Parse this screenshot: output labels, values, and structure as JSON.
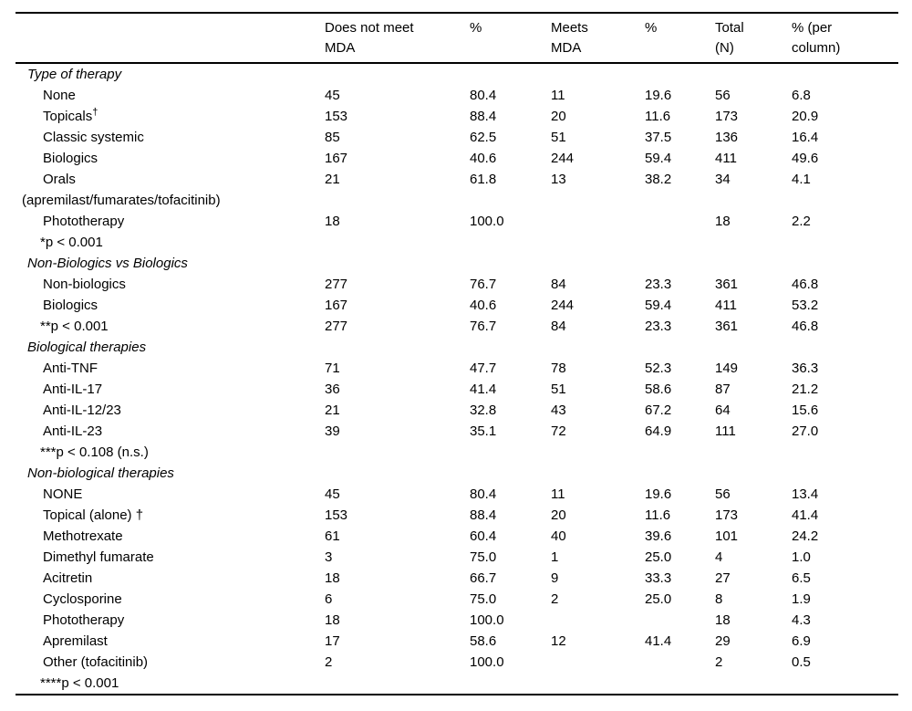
{
  "colors": {
    "background": "#ffffff",
    "text": "#000000",
    "rule": "#000000"
  },
  "table": {
    "headers": [
      "",
      "Does not meet\nMDA",
      "%",
      "Meets\nMDA",
      "%",
      "Total\n(N)",
      "% (per\ncolumn)"
    ],
    "rows": [
      {
        "type": "section",
        "label": "Type of therapy"
      },
      {
        "type": "item",
        "label": "None",
        "values": [
          "45",
          "80.4",
          "11",
          "19.6",
          "56",
          "6.8"
        ]
      },
      {
        "type": "item",
        "label": "Topicals",
        "label_sup": "†",
        "values": [
          "153",
          "88.4",
          "20",
          "11.6",
          "173",
          "20.9"
        ]
      },
      {
        "type": "item",
        "label": "Classic systemic",
        "values": [
          "85",
          "62.5",
          "51",
          "37.5",
          "136",
          "16.4"
        ]
      },
      {
        "type": "item",
        "label": "Biologics",
        "values": [
          "167",
          "40.6",
          "244",
          "59.4",
          "411",
          "49.6"
        ]
      },
      {
        "type": "item",
        "label": "Orals",
        "values": [
          "21",
          "61.8",
          "13",
          "38.2",
          "34",
          "4.1"
        ]
      },
      {
        "type": "continuation",
        "label": "(apremilast/fumarates/tofacitinib)"
      },
      {
        "type": "item",
        "label": "Phototherapy",
        "values": [
          "18",
          "100.0",
          "",
          "",
          "18",
          "2.2"
        ]
      },
      {
        "type": "footnote",
        "label": "*p < 0.001"
      },
      {
        "type": "section",
        "label": "Non-Biologics vs Biologics"
      },
      {
        "type": "item",
        "label": "Non-biologics",
        "values": [
          "277",
          "76.7",
          "84",
          "23.3",
          "361",
          "46.8"
        ]
      },
      {
        "type": "item",
        "label": "Biologics",
        "values": [
          "167",
          "40.6",
          "244",
          "59.4",
          "411",
          "53.2"
        ]
      },
      {
        "type": "footnote",
        "label": "**p < 0.001",
        "values": [
          "277",
          "76.7",
          "84",
          "23.3",
          "361",
          "46.8"
        ]
      },
      {
        "type": "section",
        "label": "Biological therapies"
      },
      {
        "type": "item",
        "label": "Anti-TNF",
        "values": [
          "71",
          "47.7",
          "78",
          "52.3",
          "149",
          "36.3"
        ]
      },
      {
        "type": "item",
        "label": "Anti-IL-17",
        "values": [
          "36",
          "41.4",
          "51",
          "58.6",
          "87",
          "21.2"
        ]
      },
      {
        "type": "item",
        "label": "Anti-IL-12/23",
        "values": [
          "21",
          "32.8",
          "43",
          "67.2",
          "64",
          "15.6"
        ]
      },
      {
        "type": "item",
        "label": "Anti-IL-23",
        "values": [
          "39",
          "35.1",
          "72",
          "64.9",
          "111",
          "27.0"
        ]
      },
      {
        "type": "footnote",
        "label": "***p < 0.108 (n.s.)"
      },
      {
        "type": "section",
        "label": "Non-biological therapies"
      },
      {
        "type": "item",
        "label": "NONE",
        "values": [
          "45",
          "80.4",
          "11",
          "19.6",
          "56",
          "13.4"
        ]
      },
      {
        "type": "item",
        "label": "Topical (alone) †",
        "values": [
          "153",
          "88.4",
          "20",
          "11.6",
          "173",
          "41.4"
        ]
      },
      {
        "type": "item",
        "label": "Methotrexate",
        "values": [
          "61",
          "60.4",
          "40",
          "39.6",
          "101",
          "24.2"
        ]
      },
      {
        "type": "item",
        "label": "Dimethyl fumarate",
        "values": [
          "3",
          "75.0",
          "1",
          "25.0",
          "4",
          "1.0"
        ]
      },
      {
        "type": "item",
        "label": "Acitretin",
        "values": [
          "18",
          "66.7",
          "9",
          "33.3",
          "27",
          "6.5"
        ]
      },
      {
        "type": "item",
        "label": "Cyclosporine",
        "values": [
          "6",
          "75.0",
          "2",
          "25.0",
          "8",
          "1.9"
        ]
      },
      {
        "type": "item",
        "label": "Phototherapy",
        "values": [
          "18",
          "100.0",
          "",
          "",
          "18",
          "4.3"
        ]
      },
      {
        "type": "item",
        "label": "Apremilast",
        "values": [
          "17",
          "58.6",
          "12",
          "41.4",
          "29",
          "6.9"
        ]
      },
      {
        "type": "item",
        "label": "Other (tofacitinib)",
        "values": [
          "2",
          "100.0",
          "",
          "",
          "2",
          "0.5"
        ]
      },
      {
        "type": "footnote",
        "label": "****p < 0.001"
      }
    ]
  }
}
